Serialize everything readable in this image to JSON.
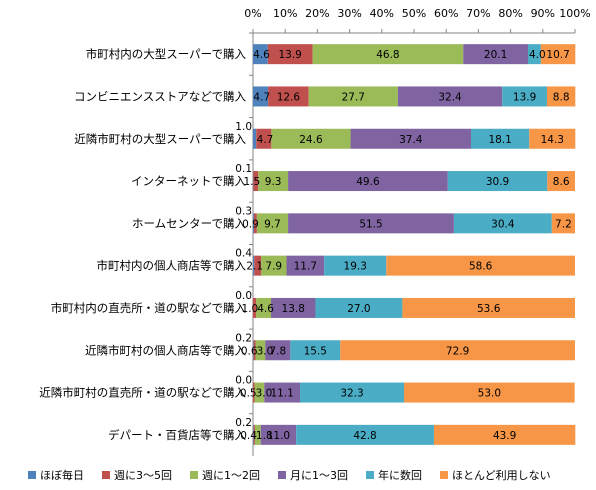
{
  "chart_data": {
    "type": "bar",
    "orientation": "horizontal",
    "stacked": "percent",
    "xlim": [
      0,
      100
    ],
    "x_ticks": [
      "0%",
      "10%",
      "20%",
      "30%",
      "40%",
      "50%",
      "60%",
      "70%",
      "80%",
      "90%",
      "100%"
    ],
    "grid": false,
    "legend_position": "bottom",
    "categories": [
      "市町村内の大型スーパーで購入",
      "コンビニエンスストアなどで購入",
      "近隣市町村の大型スーパーで購入",
      "インターネットで購入",
      "ホームセンターで購入",
      "市町村内の個人商店等で購入",
      "市町村内の直売所・道の駅などで購入",
      "近隣市町村の個人商店等で購入",
      "近隣市町村の直売所・道の駅などで購入",
      "デパート・百貨店等で購入"
    ],
    "series": [
      {
        "name": "ほぼ毎日",
        "color": "#4f81bd",
        "values": [
          4.6,
          4.7,
          1.0,
          0.1,
          0.3,
          0.4,
          0.0,
          0.2,
          0.0,
          0.2
        ],
        "labels": [
          "4.6",
          "4.7",
          "1.0",
          "0.1",
          "0.3",
          "0.4",
          "0.0",
          "0.2",
          "0.0",
          "0.2"
        ]
      },
      {
        "name": "週に3～5回",
        "color": "#c0504d",
        "values": [
          13.9,
          12.6,
          4.7,
          1.5,
          0.9,
          2.1,
          1.0,
          0.6,
          0.5,
          0.4
        ],
        "labels": [
          "13.9",
          "12.6",
          "4.7",
          "1.5",
          "0.9",
          "2.1",
          "1.0",
          "0.6",
          "0.5",
          "0.4"
        ]
      },
      {
        "name": "週に1～2回",
        "color": "#9bbb59",
        "values": [
          46.8,
          27.7,
          24.6,
          9.3,
          9.7,
          7.9,
          4.6,
          3.0,
          3.0,
          1.8
        ],
        "labels": [
          "46.8",
          "27.7",
          "24.6",
          "9.3",
          "9.7",
          "7.9",
          "4.6",
          "3.0",
          "3.0",
          "1.8"
        ]
      },
      {
        "name": "月に1～3回",
        "color": "#8064a2",
        "values": [
          20.1,
          32.4,
          37.4,
          49.6,
          51.5,
          11.7,
          13.8,
          7.8,
          11.1,
          11.0
        ],
        "labels": [
          "20.1",
          "32.4",
          "37.4",
          "49.6",
          "51.5",
          "11.7",
          "13.8",
          "7.8",
          "11.1",
          "11.0"
        ]
      },
      {
        "name": "年に数回",
        "color": "#4bacc6",
        "values": [
          4.0,
          13.9,
          18.1,
          30.9,
          30.4,
          19.3,
          27.0,
          15.5,
          32.3,
          42.8
        ],
        "labels": [
          "4.0",
          "13.9",
          "18.1",
          "30.9",
          "30.4",
          "19.3",
          "27.0",
          "15.5",
          "32.3",
          "42.8"
        ]
      },
      {
        "name": "ほとんど利用しない",
        "color": "#f79646",
        "values": [
          10.7,
          8.8,
          14.3,
          8.6,
          7.2,
          58.6,
          53.6,
          72.9,
          53.0,
          43.9
        ],
        "labels": [
          "10.7",
          "8.8",
          "14.3",
          "8.6",
          "7.2",
          "58.6",
          "53.6",
          "72.9",
          "53.0",
          "43.9"
        ]
      }
    ]
  }
}
